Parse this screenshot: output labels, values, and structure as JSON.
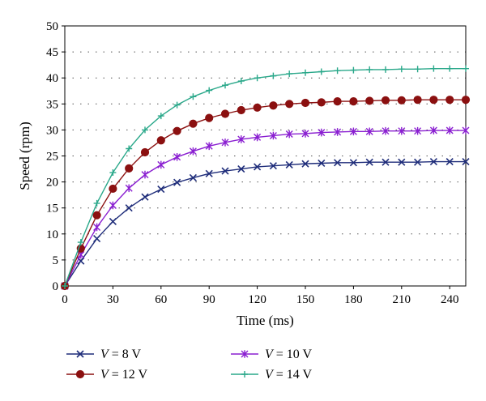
{
  "chart_data": {
    "type": "line",
    "title": "",
    "xlabel": "Time (ms)",
    "ylabel": "Speed (rpm)",
    "xlim": [
      0,
      250
    ],
    "ylim": [
      0,
      50
    ],
    "x_ticks": [
      0,
      30,
      60,
      90,
      120,
      150,
      180,
      210,
      240
    ],
    "y_ticks": [
      0,
      5,
      10,
      15,
      20,
      25,
      30,
      35,
      40,
      45,
      50
    ],
    "grid": "horizontal-dotted",
    "legend_position": "bottom",
    "x": [
      0,
      10,
      20,
      30,
      40,
      50,
      60,
      70,
      80,
      90,
      100,
      110,
      120,
      130,
      140,
      150,
      160,
      170,
      180,
      190,
      200,
      210,
      220,
      230,
      240,
      250
    ],
    "series": [
      {
        "name": "V = 8 V",
        "var": "V",
        "rest": " = 8 V",
        "color": "#1f2d7a",
        "marker": "x",
        "values": [
          0,
          4.8,
          9.1,
          12.4,
          15.0,
          17.1,
          18.6,
          19.9,
          20.8,
          21.6,
          22.1,
          22.5,
          22.9,
          23.1,
          23.3,
          23.5,
          23.6,
          23.7,
          23.7,
          23.8,
          23.8,
          23.8,
          23.8,
          23.9,
          23.9,
          23.9
        ]
      },
      {
        "name": "V = 10 V",
        "var": "V",
        "rest": " = 10 V",
        "color": "#8a1fd1",
        "marker": "asterisk",
        "values": [
          0,
          6.0,
          11.3,
          15.5,
          18.8,
          21.4,
          23.3,
          24.8,
          25.9,
          26.9,
          27.6,
          28.2,
          28.6,
          28.9,
          29.2,
          29.3,
          29.5,
          29.6,
          29.7,
          29.7,
          29.8,
          29.8,
          29.8,
          29.9,
          29.9,
          29.9
        ]
      },
      {
        "name": "V = 12 V",
        "var": "V",
        "rest": " = 12 V",
        "color": "#8b1010",
        "marker": "circle",
        "values": [
          0,
          7.2,
          13.6,
          18.7,
          22.6,
          25.7,
          28.0,
          29.8,
          31.2,
          32.3,
          33.1,
          33.8,
          34.3,
          34.7,
          35.0,
          35.2,
          35.3,
          35.5,
          35.5,
          35.6,
          35.7,
          35.7,
          35.8,
          35.8,
          35.8,
          35.8
        ]
      },
      {
        "name": "V = 14 V",
        "var": "V",
        "rest": " = 14 V",
        "color": "#2aa88a",
        "marker": "plus",
        "values": [
          0,
          8.4,
          15.9,
          21.8,
          26.4,
          30.0,
          32.7,
          34.8,
          36.4,
          37.6,
          38.6,
          39.4,
          40.0,
          40.4,
          40.8,
          41.0,
          41.2,
          41.4,
          41.5,
          41.6,
          41.6,
          41.7,
          41.7,
          41.8,
          41.8,
          41.8
        ]
      }
    ]
  }
}
